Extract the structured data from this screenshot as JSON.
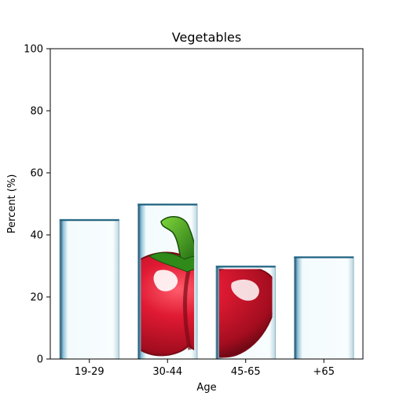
{
  "chart_data": {
    "type": "bar",
    "title": "Vegetables",
    "xlabel": "Age",
    "ylabel": "Percent (%)",
    "categories": [
      "19-29",
      "30-44",
      "45-65",
      "+65"
    ],
    "values": [
      45,
      50,
      30,
      33
    ],
    "ylim": [
      0,
      100
    ],
    "yticks": [
      0,
      20,
      40,
      60,
      80,
      100
    ],
    "grid": false,
    "legend": "none",
    "bar_fill": "pepper-image",
    "colors": {
      "bar_base": "#f4fbfd",
      "bar_edge": "#8fb8c6",
      "bar_shadow": "#1f5f7f",
      "pepper_red": "#d0142a",
      "pepper_dark": "#7a0a16",
      "pepper_highlight": "#ffffff",
      "stem_green": "#2f8a1a",
      "stem_light": "#6cc82e"
    }
  }
}
